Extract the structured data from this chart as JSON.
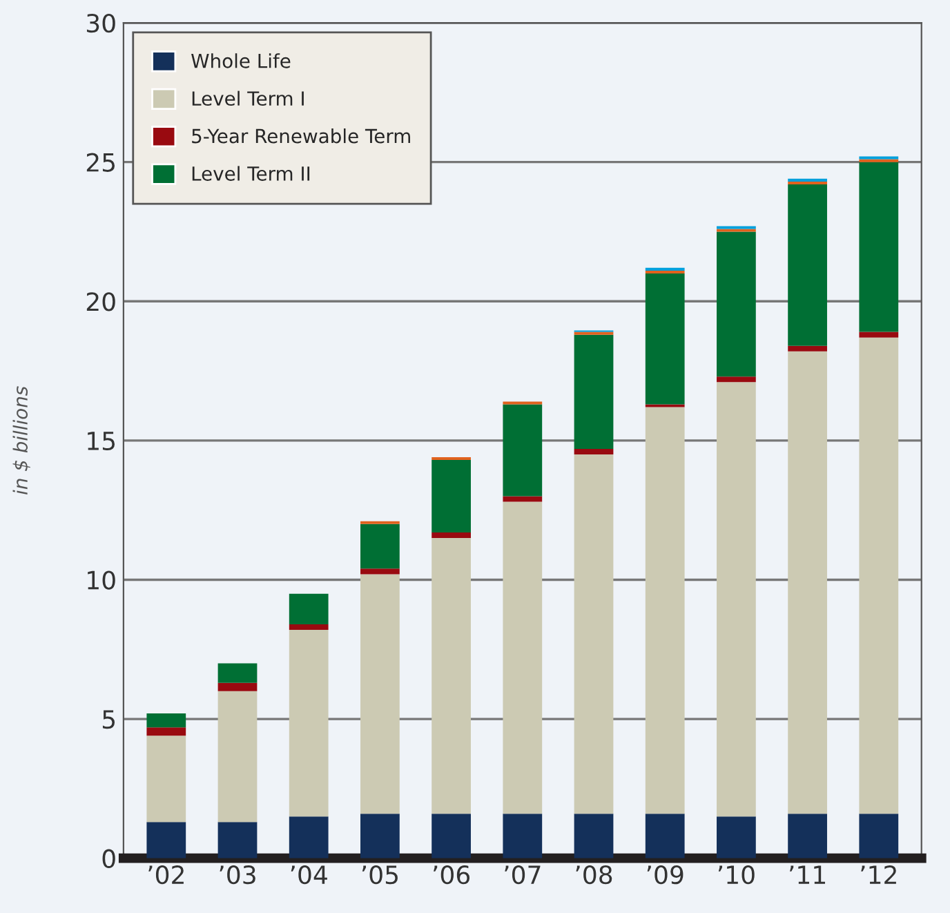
{
  "chart_data": {
    "type": "bar",
    "stacked": true,
    "ylabel": "in $ billions",
    "categories": [
      "’02",
      "’03",
      "’04",
      "’05",
      "’06",
      "’07",
      "’08",
      "’09",
      "’10",
      "’11",
      "’12"
    ],
    "series": [
      {
        "name": "Whole Life",
        "color": "#14305a",
        "values": [
          1.3,
          1.3,
          1.5,
          1.6,
          1.6,
          1.6,
          1.6,
          1.6,
          1.5,
          1.6,
          1.6
        ]
      },
      {
        "name": "Level Term I",
        "color": "#cccab3",
        "values": [
          3.1,
          4.7,
          6.7,
          8.6,
          9.9,
          11.2,
          12.9,
          14.6,
          15.6,
          16.6,
          17.1
        ]
      },
      {
        "name": "5-Year Renewable Term",
        "color": "#990a10",
        "values": [
          0.3,
          0.3,
          0.2,
          0.2,
          0.2,
          0.2,
          0.2,
          0.1,
          0.2,
          0.2,
          0.2
        ]
      },
      {
        "name": "Level Term II",
        "color": "#006f34",
        "values": [
          0.5,
          0.7,
          1.1,
          1.6,
          2.6,
          3.3,
          4.1,
          4.7,
          5.2,
          5.8,
          6.1
        ]
      },
      {
        "color": "#e0621e",
        "values": [
          0,
          0,
          0,
          0.1,
          0.1,
          0.1,
          0.1,
          0.1,
          0.1,
          0.1,
          0.1
        ]
      },
      {
        "color": "#00a0dc",
        "values": [
          0,
          0,
          0,
          0,
          0,
          0,
          0.05,
          0.1,
          0.1,
          0.1,
          0.1
        ]
      }
    ],
    "ylim": [
      0,
      30
    ],
    "yticks": [
      0,
      5,
      10,
      15,
      20,
      25,
      30
    ],
    "grid": "y",
    "legend": "top left"
  }
}
